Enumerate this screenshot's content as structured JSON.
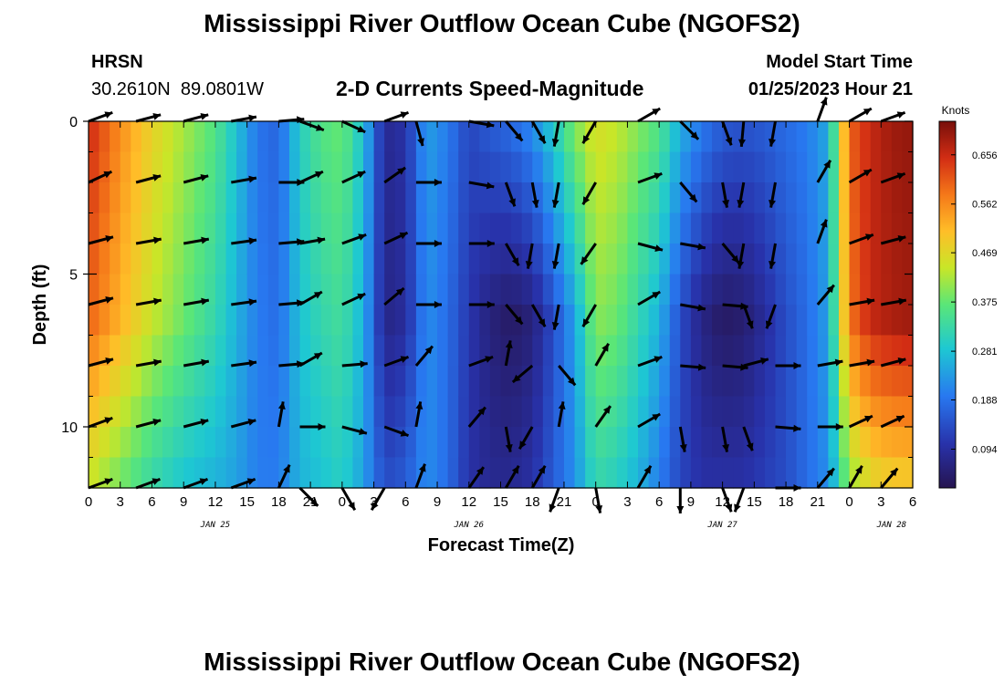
{
  "header": {
    "title": "Mississippi River Outflow Ocean Cube (NGOFS2)",
    "station_name": "HRSN",
    "station_coords": "30.2610N  89.0801W",
    "subtitle": "2-D Currents Speed-Magnitude",
    "model_label": "Model Start Time",
    "model_time": "01/25/2023 Hour 21"
  },
  "footer": {
    "title": "Mississippi River Outflow Ocean Cube (NGOFS2)"
  },
  "chart_data": {
    "type": "heatmap",
    "title": "2-D Currents Speed-Magnitude",
    "xlabel": "Forecast Time(Z)",
    "ylabel": "Depth (ft)",
    "x_hours_since_jan25_00": [
      0,
      78
    ],
    "x_tick_step_hours": 3,
    "x_tick_labels": [
      "0",
      "3",
      "6",
      "9",
      "12",
      "15",
      "18",
      "21",
      "0",
      "3",
      "6",
      "9",
      "12",
      "15",
      "18",
      "21",
      "0",
      "3",
      "6",
      "9",
      "12",
      "15",
      "18",
      "21",
      "0",
      "3",
      "6"
    ],
    "date_labels": [
      {
        "hour": 12,
        "label": "JAN 25"
      },
      {
        "hour": 36,
        "label": "JAN 26"
      },
      {
        "hour": 60,
        "label": "JAN 27"
      },
      {
        "hour": 76,
        "label": "JAN 28"
      }
    ],
    "ylim": [
      0,
      12
    ],
    "y_ticks": [
      0,
      5,
      10
    ],
    "y_minor_step": 1,
    "colorbar": {
      "label": "Knots",
      "range": [
        0.02,
        0.72
      ],
      "ticks": [
        0.094,
        0.188,
        0.281,
        0.375,
        0.469,
        0.562,
        0.656
      ],
      "tick_labels": [
        "0.094",
        "0.188",
        "0.281",
        "0.375",
        "0.469",
        "0.562",
        "0.656"
      ]
    },
    "speed_profile": {
      "hours": [
        0,
        3,
        6,
        9,
        12,
        14,
        16,
        18,
        20,
        22,
        24,
        26,
        28,
        30,
        32,
        34,
        36,
        38,
        40,
        42,
        44,
        46,
        48,
        50,
        52,
        54,
        56,
        58,
        60,
        62,
        64,
        66,
        68,
        70,
        72,
        74,
        76,
        78
      ],
      "surface": [
        0.66,
        0.56,
        0.48,
        0.42,
        0.36,
        0.28,
        0.19,
        0.17,
        0.3,
        0.36,
        0.38,
        0.28,
        0.08,
        0.1,
        0.24,
        0.2,
        0.13,
        0.16,
        0.18,
        0.22,
        0.3,
        0.4,
        0.46,
        0.44,
        0.4,
        0.36,
        0.26,
        0.2,
        0.16,
        0.15,
        0.16,
        0.18,
        0.2,
        0.25,
        0.6,
        0.66,
        0.69,
        0.7
      ],
      "mid": [
        0.6,
        0.52,
        0.44,
        0.38,
        0.32,
        0.26,
        0.2,
        0.18,
        0.28,
        0.32,
        0.34,
        0.26,
        0.07,
        0.09,
        0.22,
        0.18,
        0.11,
        0.06,
        0.04,
        0.06,
        0.14,
        0.24,
        0.4,
        0.38,
        0.32,
        0.26,
        0.14,
        0.07,
        0.04,
        0.05,
        0.09,
        0.14,
        0.18,
        0.24,
        0.58,
        0.66,
        0.68,
        0.69
      ],
      "bottom": [
        0.44,
        0.38,
        0.32,
        0.28,
        0.26,
        0.24,
        0.2,
        0.2,
        0.26,
        0.28,
        0.3,
        0.24,
        0.14,
        0.16,
        0.22,
        0.18,
        0.1,
        0.08,
        0.08,
        0.1,
        0.16,
        0.22,
        0.32,
        0.3,
        0.26,
        0.2,
        0.13,
        0.1,
        0.1,
        0.1,
        0.12,
        0.14,
        0.18,
        0.22,
        0.4,
        0.46,
        0.48,
        0.48
      ]
    },
    "vector_hours": [
      0,
      4.5,
      9,
      13.5,
      18,
      20,
      24,
      28,
      31,
      36,
      39.5,
      42,
      44.5,
      48,
      52,
      56,
      60,
      62,
      65,
      69,
      72,
      75
    ],
    "vector_depths": [
      0,
      2,
      4,
      6,
      8,
      10,
      12
    ],
    "vector_angles_deg": [
      [
        -20,
        -15,
        -15,
        -10,
        -5,
        20,
        25,
        -20,
        75,
        10,
        50,
        60,
        100,
        120,
        -30,
        45,
        70,
        95,
        100,
        -70,
        -30,
        -20
      ],
      [
        -25,
        -15,
        -15,
        -10,
        0,
        -25,
        -25,
        -35,
        0,
        10,
        70,
        80,
        100,
        120,
        -20,
        50,
        80,
        100,
        100,
        -60,
        -30,
        -20
      ],
      [
        -15,
        -10,
        -10,
        -8,
        -5,
        -10,
        -20,
        -25,
        0,
        0,
        60,
        100,
        100,
        125,
        15,
        10,
        50,
        100,
        100,
        -70,
        -20,
        -15
      ],
      [
        -15,
        -10,
        -10,
        -8,
        -5,
        -30,
        -25,
        -40,
        0,
        0,
        50,
        60,
        100,
        120,
        -30,
        10,
        5,
        70,
        110,
        -50,
        -10,
        -10
      ],
      [
        -15,
        -10,
        -10,
        -8,
        -5,
        -30,
        -5,
        -20,
        -50,
        -20,
        -80,
        140,
        50,
        -60,
        -20,
        5,
        5,
        -15,
        0,
        -10,
        -10,
        -15
      ],
      [
        -20,
        -15,
        -15,
        -15,
        -80,
        0,
        15,
        20,
        -80,
        -50,
        80,
        120,
        -80,
        -55,
        -30,
        80,
        80,
        70,
        5,
        0,
        -25,
        -25
      ],
      [
        -20,
        -20,
        -20,
        -20,
        -65,
        45,
        60,
        120,
        -70,
        -55,
        -60,
        -60,
        110,
        80,
        -60,
        90,
        70,
        110,
        0,
        -50,
        -60,
        -50
      ]
    ]
  }
}
